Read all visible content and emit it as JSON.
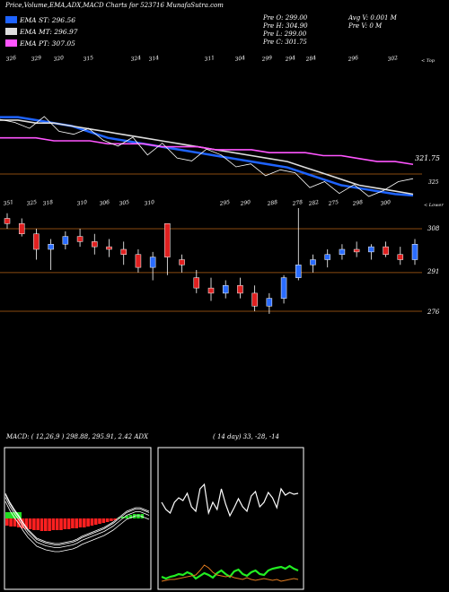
{
  "title": "Price,Volume,EMA,ADX,MACD Charts for 523716  MunafaSutra.com",
  "legend": [
    {
      "label": "EMA ST: 296.56",
      "color": "#1e63ff"
    },
    {
      "label": "EMA MT: 296.97",
      "color": "#dddddd"
    },
    {
      "label": "EMA PT: 307.05",
      "color": "#ff55ff"
    }
  ],
  "stats": {
    "col1": [
      "Pre  O: 299.00",
      "Pre  H: 304.90",
      "Pre  L: 299.00",
      "Pre  C: 301.75"
    ],
    "col2": [
      "Avg V: 0.001 M",
      "Pre  V: 0  M"
    ]
  },
  "top_right_label": "< Top",
  "mid_right_label": "< Lower",
  "top_price_label": "321.75",
  "top_price_label2": "325",
  "price_axis": [
    "308",
    "291",
    "276"
  ],
  "top_numbers": [
    "326",
    "329",
    "320",
    "315",
    "324",
    "314",
    "311",
    "304",
    "299",
    "294",
    "284",
    "296",
    "302"
  ],
  "mid_numbers": [
    "351",
    "325",
    "318",
    "310",
    "306",
    "305",
    "310",
    "295",
    "290",
    "288",
    "278",
    "282",
    "275",
    "298",
    "300"
  ],
  "macd_label": "MACD: ( 12,26,9 ) 298.88, 295.91, 2.42  ADX",
  "adx_label": "( 14  day) 33, -28, -14",
  "chart_data": [
    {
      "type": "line",
      "title": "Price,Volume,EMA,ADX,MACD Charts for 523716",
      "series": [
        {
          "name": "EMA ST",
          "color": "#1e63ff",
          "values": [
            323,
            323,
            322,
            321,
            320,
            318,
            316,
            315,
            314,
            313,
            312,
            311,
            310,
            309,
            308,
            307,
            306,
            304,
            302,
            300,
            299,
            298,
            297,
            296.56
          ]
        },
        {
          "name": "EMA MT",
          "color": "#dddddd",
          "values": [
            322,
            322,
            321,
            321,
            320,
            319,
            318,
            317,
            316,
            315,
            314,
            313,
            312,
            311,
            310,
            309,
            308,
            306,
            304,
            302,
            300,
            299,
            298,
            296.97
          ]
        },
        {
          "name": "EMA PT",
          "color": "#ff55ff",
          "values": [
            316,
            316,
            316,
            315,
            315,
            315,
            314,
            314,
            314,
            313,
            313,
            313,
            312,
            312,
            312,
            311,
            311,
            311,
            310,
            310,
            309,
            308,
            308,
            307.05
          ]
        }
      ]
    },
    {
      "type": "candlestick",
      "ylabel_ticks": [
        308,
        291,
        276
      ],
      "candles": [
        {
          "o": 312,
          "h": 314,
          "l": 308,
          "c": 310
        },
        {
          "o": 310,
          "h": 312,
          "l": 305,
          "c": 306
        },
        {
          "o": 306,
          "h": 308,
          "l": 296,
          "c": 300
        },
        {
          "o": 300,
          "h": 304,
          "l": 292,
          "c": 302
        },
        {
          "o": 302,
          "h": 307,
          "l": 300,
          "c": 305
        },
        {
          "o": 305,
          "h": 308,
          "l": 301,
          "c": 303
        },
        {
          "o": 303,
          "h": 306,
          "l": 298,
          "c": 301
        },
        {
          "o": 301,
          "h": 304,
          "l": 297,
          "c": 300
        },
        {
          "o": 300,
          "h": 303,
          "l": 294,
          "c": 298
        },
        {
          "o": 298,
          "h": 300,
          "l": 291,
          "c": 293
        },
        {
          "o": 293,
          "h": 299,
          "l": 288,
          "c": 297
        },
        {
          "o": 297,
          "h": 310,
          "l": 290,
          "c": 310
        },
        {
          "o": 296,
          "h": 298,
          "l": 291,
          "c": 294
        },
        {
          "o": 289,
          "h": 292,
          "l": 283,
          "c": 285
        },
        {
          "o": 285,
          "h": 289,
          "l": 280,
          "c": 283
        },
        {
          "o": 283,
          "h": 288,
          "l": 281,
          "c": 286
        },
        {
          "o": 286,
          "h": 289,
          "l": 281,
          "c": 283
        },
        {
          "o": 283,
          "h": 286,
          "l": 276,
          "c": 278
        },
        {
          "o": 278,
          "h": 283,
          "l": 275,
          "c": 281
        },
        {
          "o": 281,
          "h": 290,
          "l": 279,
          "c": 289
        },
        {
          "o": 289,
          "h": 316,
          "l": 288,
          "c": 294
        },
        {
          "o": 294,
          "h": 298,
          "l": 291,
          "c": 296
        },
        {
          "o": 296,
          "h": 300,
          "l": 293,
          "c": 298
        },
        {
          "o": 298,
          "h": 302,
          "l": 296,
          "c": 300
        },
        {
          "o": 300,
          "h": 303,
          "l": 297,
          "c": 299
        },
        {
          "o": 299,
          "h": 302,
          "l": 296,
          "c": 301
        },
        {
          "o": 301,
          "h": 303,
          "l": 297,
          "c": 298
        },
        {
          "o": 298,
          "h": 301,
          "l": 294,
          "c": 296
        },
        {
          "o": 296,
          "h": 304,
          "l": 294,
          "c": 302
        }
      ]
    },
    {
      "type": "bar+line",
      "title": "MACD",
      "params": "12,26,9",
      "values": {
        "macd": 298.88,
        "signal": 295.91,
        "histogram": 2.42
      }
    },
    {
      "type": "line",
      "title": "ADX",
      "params": "14 day",
      "values": {
        "adx": 33,
        "plus_di": -28,
        "minus_di": -14
      }
    }
  ]
}
